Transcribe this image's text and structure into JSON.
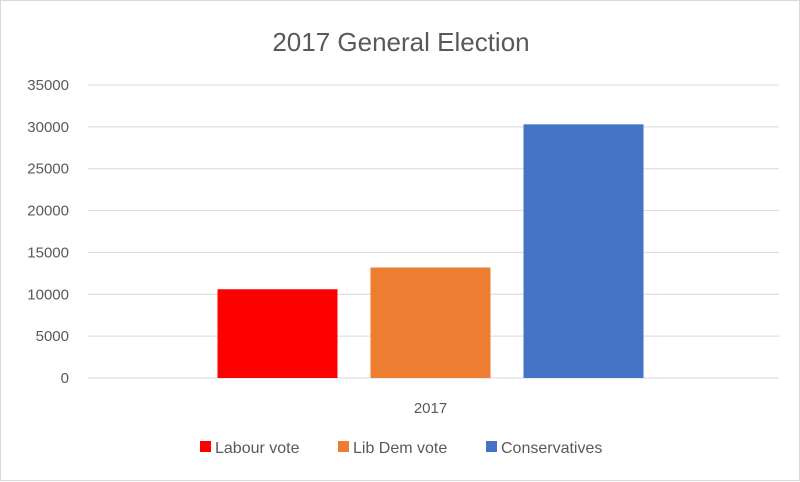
{
  "chart_data": {
    "type": "bar",
    "title": "2017 General Election",
    "categories": [
      "2017"
    ],
    "series": [
      {
        "name": "Labour vote",
        "values": [
          10600
        ],
        "color": "#ff0000"
      },
      {
        "name": "Lib Dem vote",
        "values": [
          13200
        ],
        "color": "#ed7d31"
      },
      {
        "name": "Conservatives",
        "values": [
          30300
        ],
        "color": "#4472c4"
      }
    ],
    "ylim": [
      0,
      35000
    ],
    "yticks": [
      "0",
      "5000",
      "10000",
      "15000",
      "20000",
      "25000",
      "30000",
      "35000"
    ],
    "grid": true,
    "legend_position": "bottom"
  }
}
